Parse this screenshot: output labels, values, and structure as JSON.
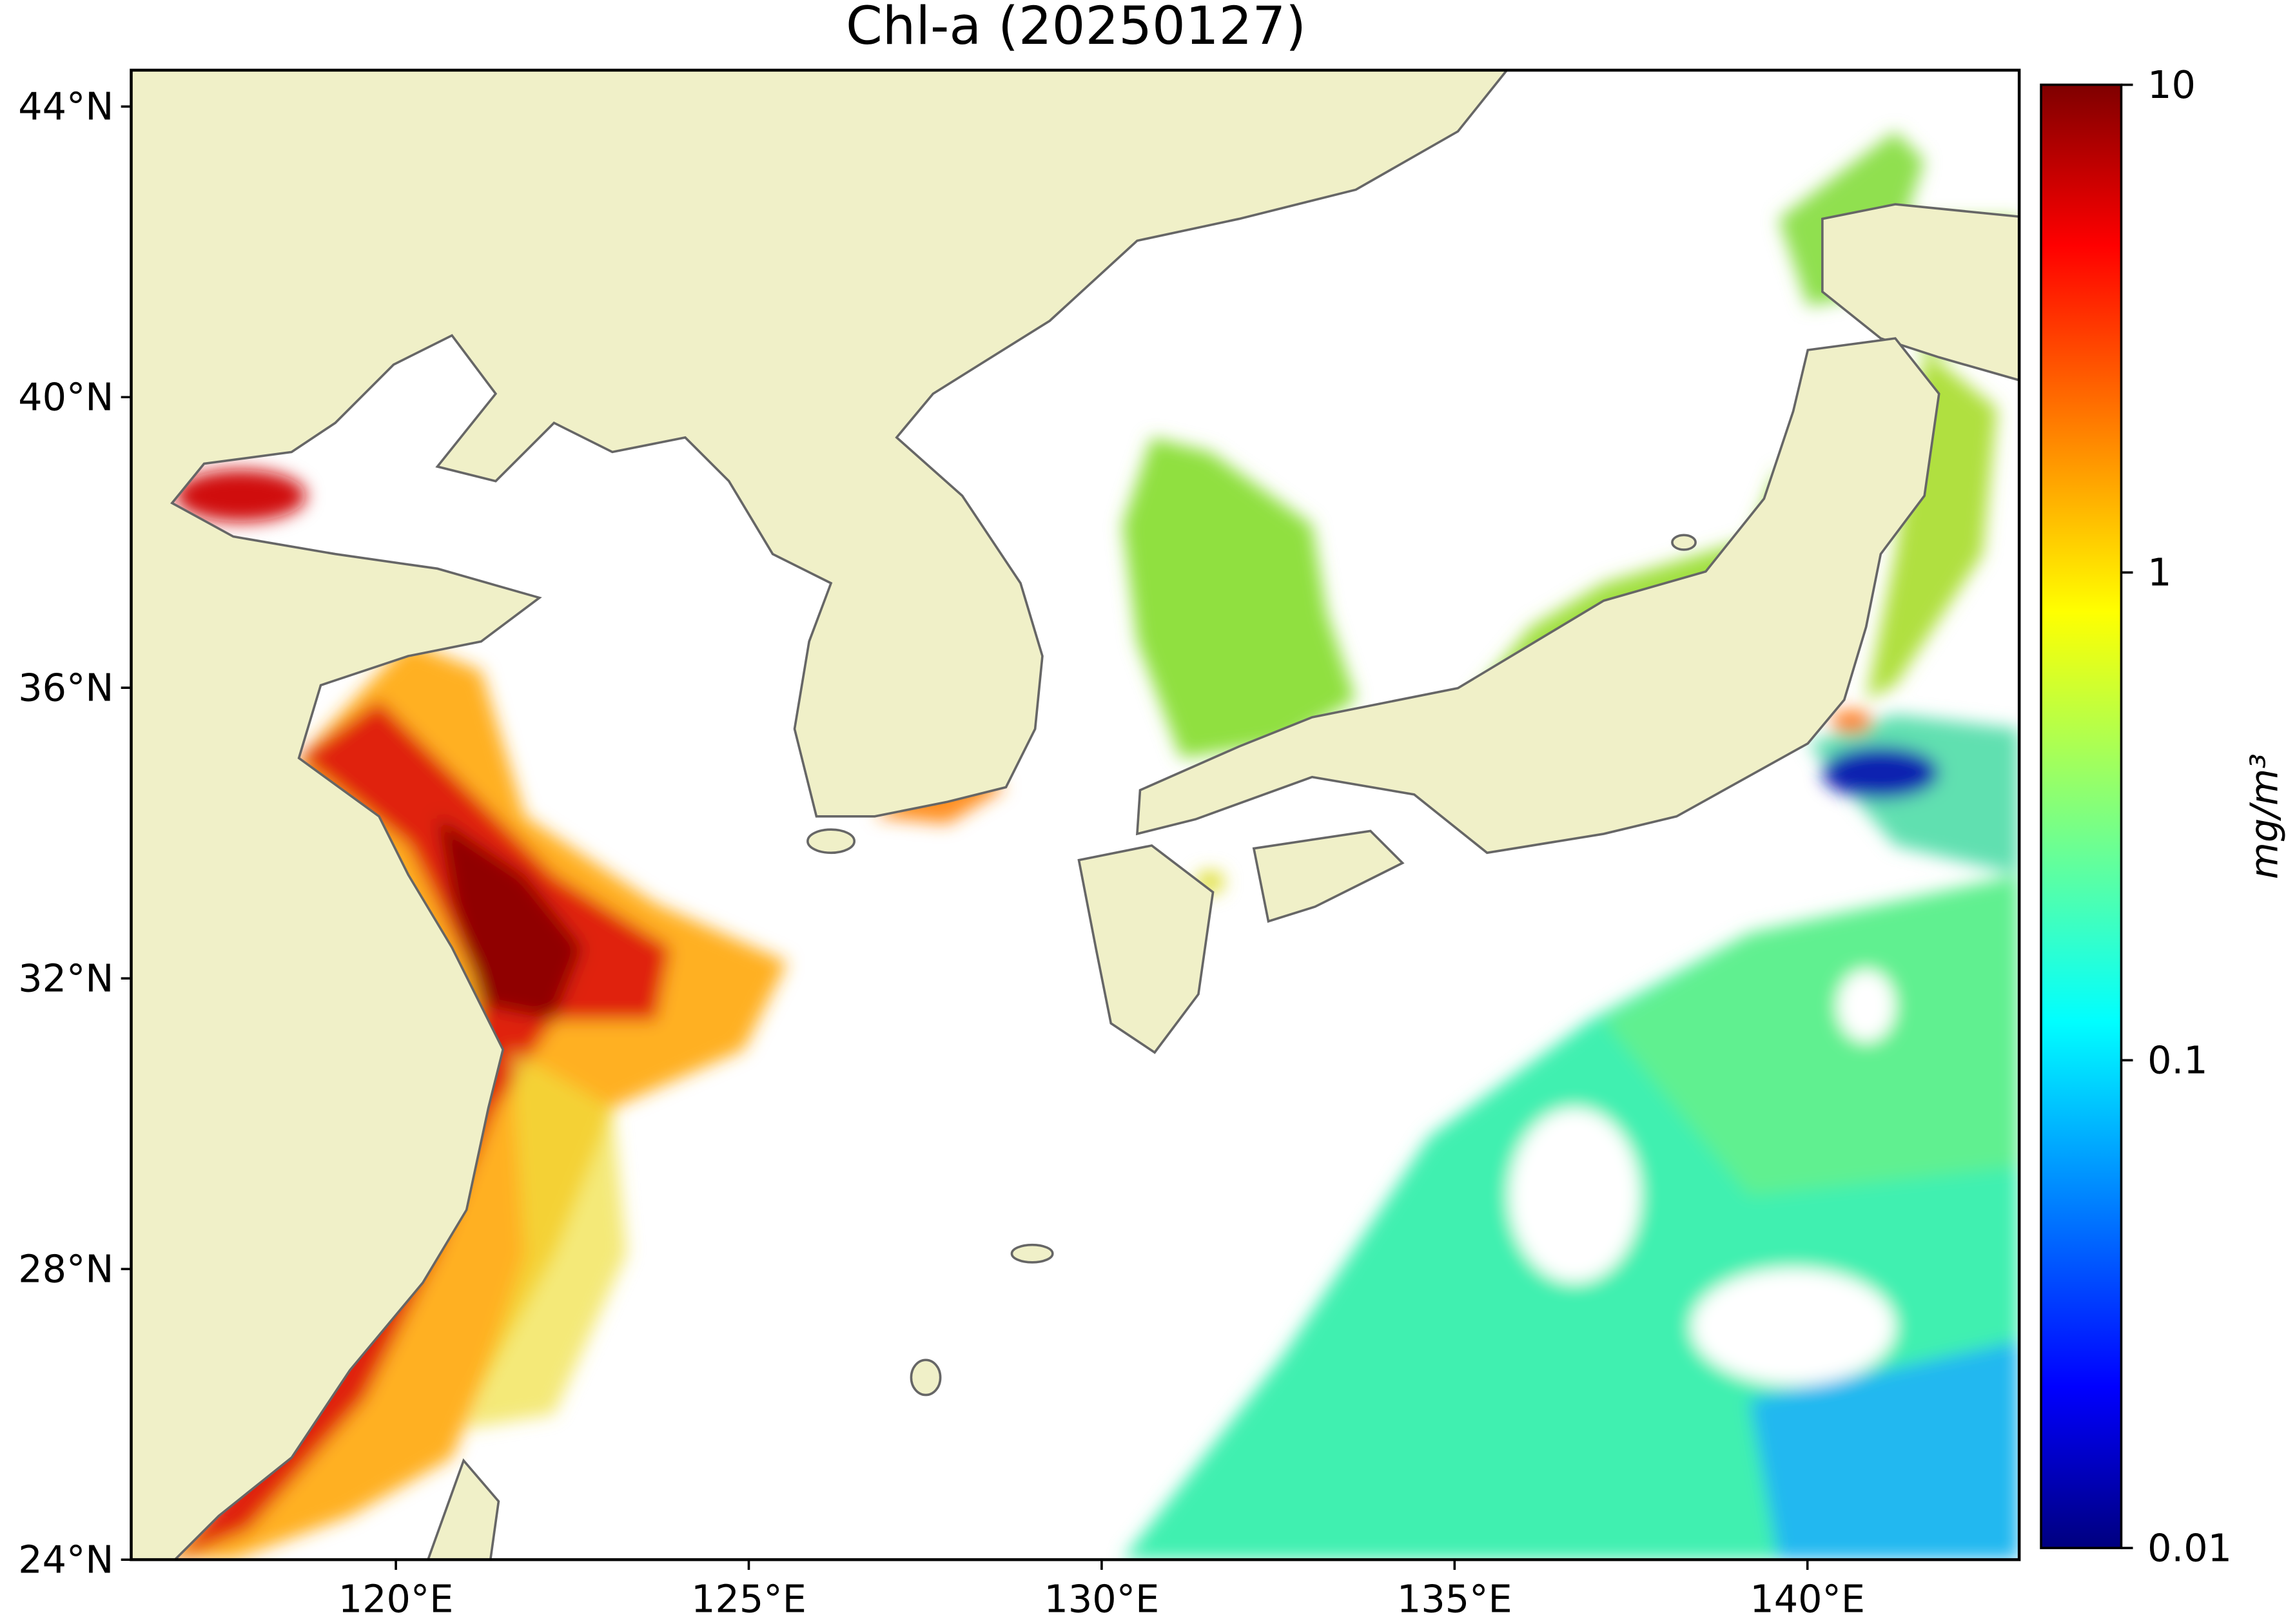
{
  "map": {
    "title": "Chl-a (20250127)",
    "xlim": [
      116.25,
      143
    ],
    "ylim": [
      24,
      44.5
    ],
    "xticks": [
      {
        "value": 120,
        "label": "120°E"
      },
      {
        "value": 125,
        "label": "125°E"
      },
      {
        "value": 130,
        "label": "130°E"
      },
      {
        "value": 135,
        "label": "135°E"
      },
      {
        "value": 140,
        "label": "140°E"
      }
    ],
    "yticks": [
      {
        "value": 24,
        "label": "24°N"
      },
      {
        "value": 28,
        "label": "28°N"
      },
      {
        "value": 32,
        "label": "32°N"
      },
      {
        "value": 36,
        "label": "36°N"
      },
      {
        "value": 40,
        "label": "40°N"
      },
      {
        "value": 44,
        "label": "44°N"
      }
    ],
    "colorbar": {
      "label": "mg/m³",
      "log_scale": true,
      "colormap": "jet",
      "lim": [
        0.01,
        10
      ],
      "ticks": [
        0.01,
        0.1,
        1,
        10
      ]
    }
  }
}
